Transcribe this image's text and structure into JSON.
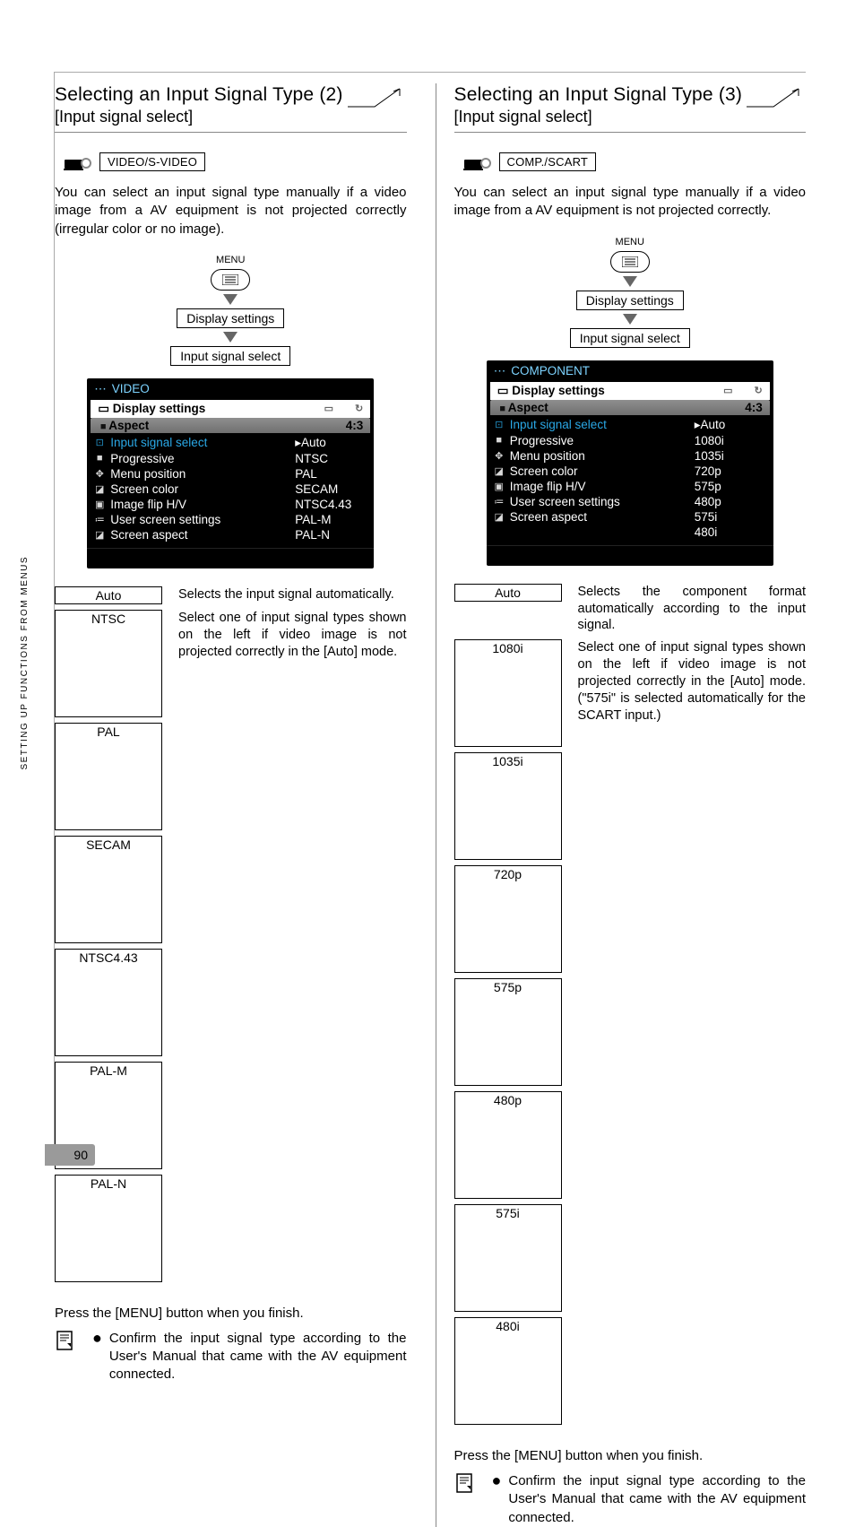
{
  "page": {
    "number": "90",
    "side_label": "SETTING UP FUNCTIONS FROM MENUS"
  },
  "left": {
    "title": "Selecting an Input Signal Type (2)",
    "subtitle": "[Input signal select]",
    "source_label": "VIDEO/S-VIDEO",
    "intro": "You can select an input signal type manually if a video image from a AV equipment is not projected correctly (irregular color or no image).",
    "flow": {
      "menu_label": "MENU",
      "step1": "Display settings",
      "step2": "Input signal select"
    },
    "osd": {
      "title": "VIDEO",
      "section": "Display settings",
      "rows": [
        {
          "icon": "■",
          "label": "Aspect",
          "value": "4:3",
          "first": true
        },
        {
          "icon": "⊡",
          "label": "Input signal select",
          "value": "▸Auto",
          "selected": true
        },
        {
          "icon": "■",
          "label": "Progressive",
          "value": "NTSC"
        },
        {
          "icon": "✥",
          "label": "Menu position",
          "value": "PAL"
        },
        {
          "icon": "◪",
          "label": "Screen color",
          "value": "SECAM"
        },
        {
          "icon": "▣",
          "label": "Image flip H/V",
          "value": "NTSC4.43"
        },
        {
          "icon": "≔",
          "label": "User screen settings",
          "value": "PAL-M"
        },
        {
          "icon": "◪",
          "label": "Screen aspect",
          "value": "PAL-N"
        }
      ]
    },
    "opts": {
      "auto": "Auto",
      "auto_desc": "Selects the input signal automatically.",
      "list_desc": "Select one of input signal types shown on the left if video image is not projected correctly in the [Auto] mode.",
      "items": [
        "NTSC",
        "PAL",
        "SECAM",
        "NTSC4.43",
        "PAL-M",
        "PAL-N"
      ]
    },
    "finish": "Press the [MENU] button when you finish.",
    "note": "Confirm the input signal type according to the User's Manual that came with the AV equipment connected."
  },
  "right": {
    "title": "Selecting an Input Signal Type (3)",
    "subtitle": "[Input signal select]",
    "source_label": "COMP./SCART",
    "intro": "You can select an input signal type manually if a video image from a AV equipment is not projected correctly.",
    "flow": {
      "menu_label": "MENU",
      "step1": "Display settings",
      "step2": "Input signal select"
    },
    "osd": {
      "title": "COMPONENT",
      "section": "Display settings",
      "rows": [
        {
          "icon": "■",
          "label": "Aspect",
          "value": "4:3",
          "first": true
        },
        {
          "icon": "⊡",
          "label": "Input signal select",
          "value": "▸Auto",
          "selected": true
        },
        {
          "icon": "■",
          "label": "Progressive",
          "value": "1080i"
        },
        {
          "icon": "✥",
          "label": "Menu position",
          "value": "1035i"
        },
        {
          "icon": "◪",
          "label": "Screen color",
          "value": "720p"
        },
        {
          "icon": "▣",
          "label": "Image flip H/V",
          "value": "575p"
        },
        {
          "icon": "≔",
          "label": "User screen settings",
          "value": "480p"
        },
        {
          "icon": "◪",
          "label": "Screen aspect",
          "value": "575i"
        },
        {
          "icon": "",
          "label": "",
          "value": "480i"
        }
      ]
    },
    "opts": {
      "auto": "Auto",
      "auto_desc": "Selects the component format automatically according to the input signal.",
      "list_desc": "Select one of input signal types shown on the left if video image is not projected correctly in the [Auto] mode. (\"575i\" is selected automatically for the SCART input.)",
      "items": [
        "1080i",
        "1035i",
        "720p",
        "575p",
        "480p",
        "575i",
        "480i"
      ]
    },
    "finish": "Press the [MENU] button when you finish.",
    "note": "Confirm the input signal type according to the User's Manual that came with the AV equipment connected."
  },
  "colors": {
    "osd_bg": "#000000",
    "osd_title": "#7dd3ff",
    "osd_selected": "#2aa8e6",
    "arrow": "#666666"
  }
}
